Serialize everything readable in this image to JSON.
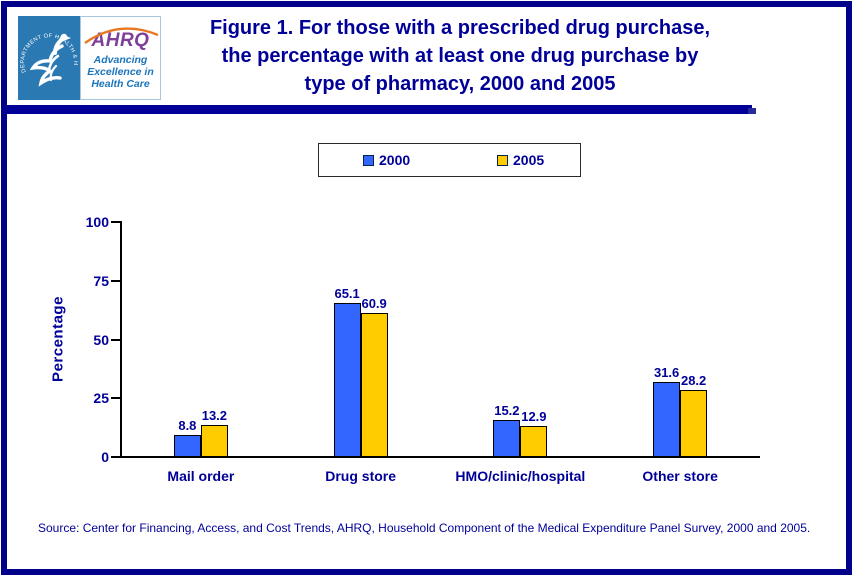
{
  "header": {
    "logo": {
      "hhs_seal_text": "DEPARTMENT OF HEALTH & HUMAN SERVICES • USA",
      "ahrq_acronym": "AHRQ",
      "tagline_lines": [
        "Advancing",
        "Excellence in",
        "Health Care"
      ]
    },
    "title_lines": [
      "Figure 1. For those with a prescribed drug purchase,",
      "the percentage with at least one drug purchase by",
      "type of pharmacy, 2000 and 2005"
    ]
  },
  "chart_data": {
    "type": "bar",
    "title": "Figure 1. For those with a prescribed drug purchase, the percentage with at least one drug purchase by type of pharmacy, 2000 and 2005",
    "categories": [
      "Mail order",
      "Drug store",
      "HMO/clinic/hospital",
      "Other store"
    ],
    "series": [
      {
        "name": "2000",
        "color": "#3366FF",
        "values": [
          8.8,
          65.1,
          15.2,
          31.6
        ]
      },
      {
        "name": "2005",
        "color": "#FFCC00",
        "values": [
          13.2,
          60.9,
          12.9,
          28.2
        ]
      }
    ],
    "xlabel": "",
    "ylabel": "Percentage",
    "ylim": [
      0,
      100
    ],
    "yticks": [
      0,
      25,
      50,
      75,
      100
    ],
    "grid": false,
    "legend_position": "top-center",
    "value_labels_shown": true
  },
  "colors": {
    "accent_navy": "#000099",
    "page_border": "#00008B",
    "bar_2000": "#3366FF",
    "bar_2005": "#FFCC00",
    "hhs_seal_blue": "#2B79B3",
    "ahrq_purple": "#7D3F98",
    "ahrq_orange": "#E87722",
    "tagline_blue": "#1B75BC"
  },
  "source": {
    "text": "Source: Center for Financing, Access, and Cost Trends, AHRQ, Household Component of the Medical Expenditure Panel Survey, 2000 and 2005."
  }
}
